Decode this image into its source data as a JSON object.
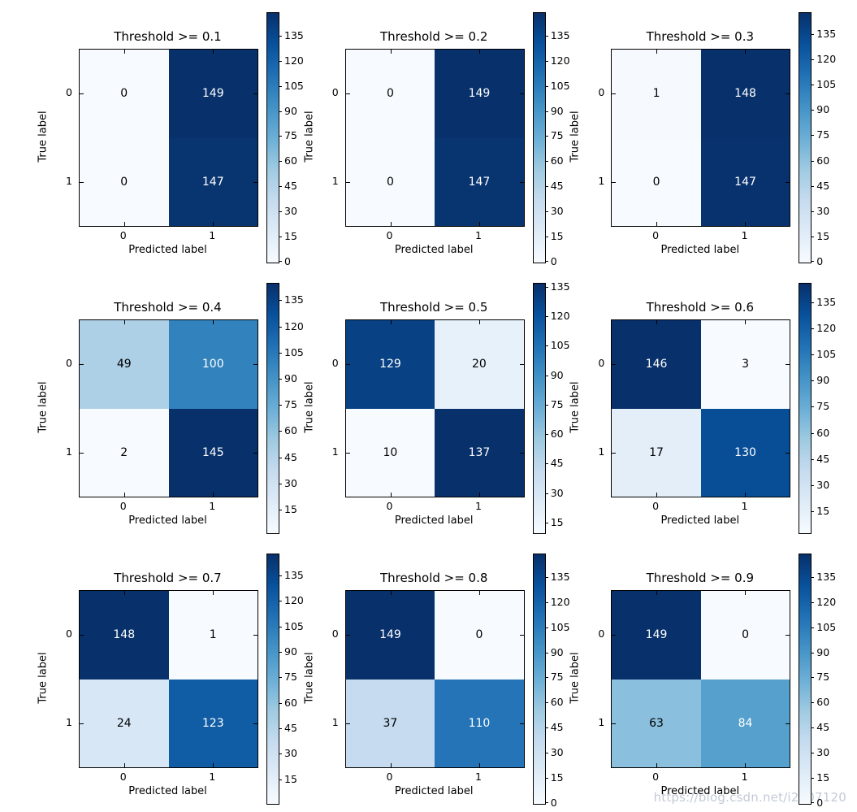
{
  "figure": {
    "description": "3x3 grid of binary confusion matrices at increasing decision thresholds",
    "xlabel": "Predicted label",
    "ylabel": "True label",
    "class_labels": [
      "0",
      "1"
    ]
  },
  "chart_data": [
    {
      "type": "heatmap",
      "threshold": "0.1",
      "title": "Threshold >= 0.1",
      "xlabel": "Predicted label",
      "ylabel": "True label",
      "x": [
        "0",
        "1"
      ],
      "y": [
        "0",
        "1"
      ],
      "matrix": [
        [
          0,
          149
        ],
        [
          0,
          147
        ]
      ],
      "vmin": 0,
      "vmax": 149,
      "colorbar_ticks": [
        0,
        15,
        30,
        45,
        60,
        75,
        90,
        105,
        120,
        135
      ]
    },
    {
      "type": "heatmap",
      "threshold": "0.2",
      "title": "Threshold >= 0.2",
      "xlabel": "Predicted label",
      "ylabel": "True label",
      "x": [
        "0",
        "1"
      ],
      "y": [
        "0",
        "1"
      ],
      "matrix": [
        [
          0,
          149
        ],
        [
          0,
          147
        ]
      ],
      "vmin": 0,
      "vmax": 149,
      "colorbar_ticks": [
        0,
        15,
        30,
        45,
        60,
        75,
        90,
        105,
        120,
        135
      ]
    },
    {
      "type": "heatmap",
      "threshold": "0.3",
      "title": "Threshold >= 0.3",
      "xlabel": "Predicted label",
      "ylabel": "True label",
      "x": [
        "0",
        "1"
      ],
      "y": [
        "0",
        "1"
      ],
      "matrix": [
        [
          1,
          148
        ],
        [
          0,
          147
        ]
      ],
      "vmin": 0,
      "vmax": 148,
      "colorbar_ticks": [
        0,
        15,
        30,
        45,
        60,
        75,
        90,
        105,
        120,
        135
      ]
    },
    {
      "type": "heatmap",
      "threshold": "0.4",
      "title": "Threshold >= 0.4",
      "xlabel": "Predicted label",
      "ylabel": "True label",
      "x": [
        "0",
        "1"
      ],
      "y": [
        "0",
        "1"
      ],
      "matrix": [
        [
          49,
          100
        ],
        [
          2,
          145
        ]
      ],
      "vmin": 2,
      "vmax": 145,
      "colorbar_ticks": [
        15,
        30,
        45,
        60,
        75,
        90,
        105,
        120,
        135
      ]
    },
    {
      "type": "heatmap",
      "threshold": "0.5",
      "title": "Threshold >= 0.5",
      "xlabel": "Predicted label",
      "ylabel": "True label",
      "x": [
        "0",
        "1"
      ],
      "y": [
        "0",
        "1"
      ],
      "matrix": [
        [
          129,
          20
        ],
        [
          10,
          137
        ]
      ],
      "vmin": 10,
      "vmax": 137,
      "colorbar_ticks": [
        15,
        30,
        45,
        60,
        75,
        90,
        105,
        120,
        135
      ]
    },
    {
      "type": "heatmap",
      "threshold": "0.6",
      "title": "Threshold >= 0.6",
      "xlabel": "Predicted label",
      "ylabel": "True label",
      "x": [
        "0",
        "1"
      ],
      "y": [
        "0",
        "1"
      ],
      "matrix": [
        [
          146,
          3
        ],
        [
          17,
          130
        ]
      ],
      "vmin": 3,
      "vmax": 146,
      "colorbar_ticks": [
        15,
        30,
        45,
        60,
        75,
        90,
        105,
        120,
        135
      ]
    },
    {
      "type": "heatmap",
      "threshold": "0.7",
      "title": "Threshold >= 0.7",
      "xlabel": "Predicted label",
      "ylabel": "True label",
      "x": [
        "0",
        "1"
      ],
      "y": [
        "0",
        "1"
      ],
      "matrix": [
        [
          148,
          1
        ],
        [
          24,
          123
        ]
      ],
      "vmin": 1,
      "vmax": 148,
      "colorbar_ticks": [
        15,
        30,
        45,
        60,
        75,
        90,
        105,
        120,
        135
      ]
    },
    {
      "type": "heatmap",
      "threshold": "0.8",
      "title": "Threshold >= 0.8",
      "xlabel": "Predicted label",
      "ylabel": "True label",
      "x": [
        "0",
        "1"
      ],
      "y": [
        "0",
        "1"
      ],
      "matrix": [
        [
          149,
          0
        ],
        [
          37,
          110
        ]
      ],
      "vmin": 0,
      "vmax": 149,
      "colorbar_ticks": [
        0,
        15,
        30,
        45,
        60,
        75,
        90,
        105,
        120,
        135
      ]
    },
    {
      "type": "heatmap",
      "threshold": "0.9",
      "title": "Threshold >= 0.9",
      "xlabel": "Predicted label",
      "ylabel": "True label",
      "x": [
        "0",
        "1"
      ],
      "y": [
        "0",
        "1"
      ],
      "matrix": [
        [
          149,
          0
        ],
        [
          63,
          84
        ]
      ],
      "vmin": 0,
      "vmax": 149,
      "colorbar_ticks": [
        0,
        15,
        30,
        45,
        60,
        75,
        90,
        105,
        120,
        135
      ]
    }
  ],
  "colors": {
    "colormap": "Blues",
    "colormap_anchors": [
      "#f7fbff",
      "#deebf7",
      "#c6dbef",
      "#9ecae1",
      "#6baed6",
      "#4292c6",
      "#2171b5",
      "#08519c",
      "#08306b"
    ],
    "cell_text_light": "#ffffff",
    "cell_text_dark": "#000000",
    "axis_color": "#000000",
    "background": "#ffffff",
    "watermark_color": "rgba(175,184,200,0.75)"
  },
  "watermark": "https://blog.csdn.net/i2107120"
}
